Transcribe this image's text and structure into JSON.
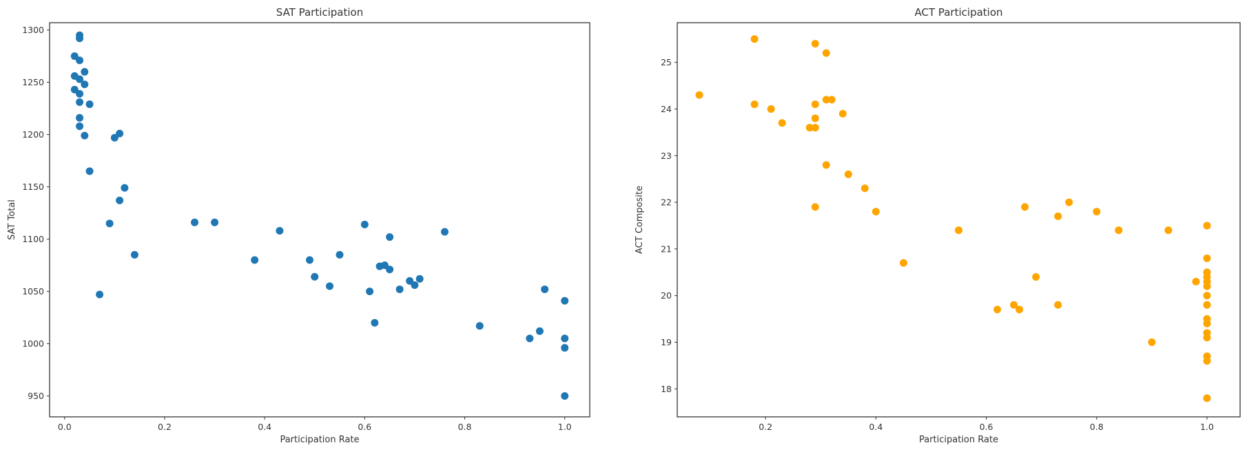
{
  "chart_data": [
    {
      "type": "scatter",
      "title": "SAT Participation",
      "xlabel": "Participation Rate",
      "ylabel": "SAT Total",
      "xlim": [
        -0.03,
        1.05
      ],
      "ylim": [
        930,
        1307
      ],
      "xticks": [
        0.0,
        0.2,
        0.4,
        0.6,
        0.8,
        1.0
      ],
      "xtick_labels": [
        "0.0",
        "0.2",
        "0.4",
        "0.6",
        "0.8",
        "1.0"
      ],
      "yticks": [
        950,
        1000,
        1050,
        1100,
        1150,
        1200,
        1250,
        1300
      ],
      "ytick_labels": [
        "950",
        "1000",
        "1050",
        "1100",
        "1150",
        "1200",
        "1250",
        "1300"
      ],
      "grid": false,
      "color": "#1f77b4",
      "points": [
        [
          0.03,
          1295
        ],
        [
          0.03,
          1292
        ],
        [
          0.02,
          1275
        ],
        [
          0.03,
          1271
        ],
        [
          0.04,
          1260
        ],
        [
          0.02,
          1256
        ],
        [
          0.03,
          1253
        ],
        [
          0.04,
          1248
        ],
        [
          0.02,
          1243
        ],
        [
          0.03,
          1239
        ],
        [
          0.05,
          1229
        ],
        [
          0.03,
          1231
        ],
        [
          0.03,
          1216
        ],
        [
          0.03,
          1208
        ],
        [
          0.04,
          1199
        ],
        [
          0.11,
          1201
        ],
        [
          0.1,
          1197
        ],
        [
          0.05,
          1165
        ],
        [
          0.12,
          1149
        ],
        [
          0.11,
          1137
        ],
        [
          0.09,
          1115
        ],
        [
          0.14,
          1085
        ],
        [
          0.07,
          1047
        ],
        [
          0.26,
          1116
        ],
        [
          0.3,
          1116
        ],
        [
          0.43,
          1108
        ],
        [
          0.38,
          1080
        ],
        [
          0.49,
          1080
        ],
        [
          0.5,
          1064
        ],
        [
          0.53,
          1055
        ],
        [
          0.55,
          1085
        ],
        [
          0.6,
          1114
        ],
        [
          0.61,
          1050
        ],
        [
          0.62,
          1020
        ],
        [
          0.63,
          1074
        ],
        [
          0.64,
          1075
        ],
        [
          0.65,
          1071
        ],
        [
          0.65,
          1102
        ],
        [
          0.67,
          1052
        ],
        [
          0.69,
          1060
        ],
        [
          0.7,
          1056
        ],
        [
          0.71,
          1062
        ],
        [
          0.76,
          1107
        ],
        [
          0.83,
          1017
        ],
        [
          0.93,
          1005
        ],
        [
          0.95,
          1012
        ],
        [
          0.96,
          1052
        ],
        [
          1.0,
          1041
        ],
        [
          1.0,
          1005
        ],
        [
          1.0,
          996
        ],
        [
          1.0,
          950
        ]
      ]
    },
    {
      "type": "scatter",
      "title": "ACT Participation",
      "xlabel": "Participation Rate",
      "ylabel": "ACT Composite",
      "xlim": [
        0.04,
        1.06
      ],
      "ylim": [
        17.4,
        25.85
      ],
      "xticks": [
        0.2,
        0.4,
        0.6,
        0.8,
        1.0
      ],
      "xtick_labels": [
        "0.2",
        "0.4",
        "0.6",
        "0.8",
        "1.0"
      ],
      "yticks": [
        18,
        19,
        20,
        21,
        22,
        23,
        24,
        25
      ],
      "ytick_labels": [
        "18",
        "19",
        "20",
        "21",
        "22",
        "23",
        "24",
        "25"
      ],
      "grid": false,
      "color": "#ffa500",
      "points": [
        [
          0.08,
          24.3
        ],
        [
          0.18,
          25.5
        ],
        [
          0.18,
          24.1
        ],
        [
          0.21,
          24.0
        ],
        [
          0.23,
          23.7
        ],
        [
          0.28,
          23.6
        ],
        [
          0.29,
          25.4
        ],
        [
          0.29,
          24.1
        ],
        [
          0.29,
          23.8
        ],
        [
          0.29,
          23.6
        ],
        [
          0.29,
          21.9
        ],
        [
          0.31,
          25.2
        ],
        [
          0.31,
          24.2
        ],
        [
          0.32,
          24.2
        ],
        [
          0.31,
          22.8
        ],
        [
          0.34,
          23.9
        ],
        [
          0.35,
          22.6
        ],
        [
          0.38,
          22.3
        ],
        [
          0.4,
          21.8
        ],
        [
          0.45,
          20.7
        ],
        [
          0.55,
          21.4
        ],
        [
          0.62,
          19.7
        ],
        [
          0.65,
          19.8
        ],
        [
          0.66,
          19.7
        ],
        [
          0.67,
          21.9
        ],
        [
          0.69,
          20.4
        ],
        [
          0.73,
          21.7
        ],
        [
          0.73,
          19.8
        ],
        [
          0.75,
          22.0
        ],
        [
          0.8,
          21.8
        ],
        [
          0.84,
          21.4
        ],
        [
          0.9,
          19.0
        ],
        [
          0.93,
          21.4
        ],
        [
          0.98,
          20.3
        ],
        [
          1.0,
          21.5
        ],
        [
          1.0,
          20.8
        ],
        [
          1.0,
          20.5
        ],
        [
          1.0,
          20.4
        ],
        [
          1.0,
          20.3
        ],
        [
          1.0,
          20.2
        ],
        [
          1.0,
          20.0
        ],
        [
          1.0,
          19.8
        ],
        [
          1.0,
          19.5
        ],
        [
          1.0,
          19.4
        ],
        [
          1.0,
          19.2
        ],
        [
          1.0,
          19.1
        ],
        [
          1.0,
          18.7
        ],
        [
          1.0,
          18.6
        ],
        [
          1.0,
          17.8
        ]
      ]
    }
  ]
}
